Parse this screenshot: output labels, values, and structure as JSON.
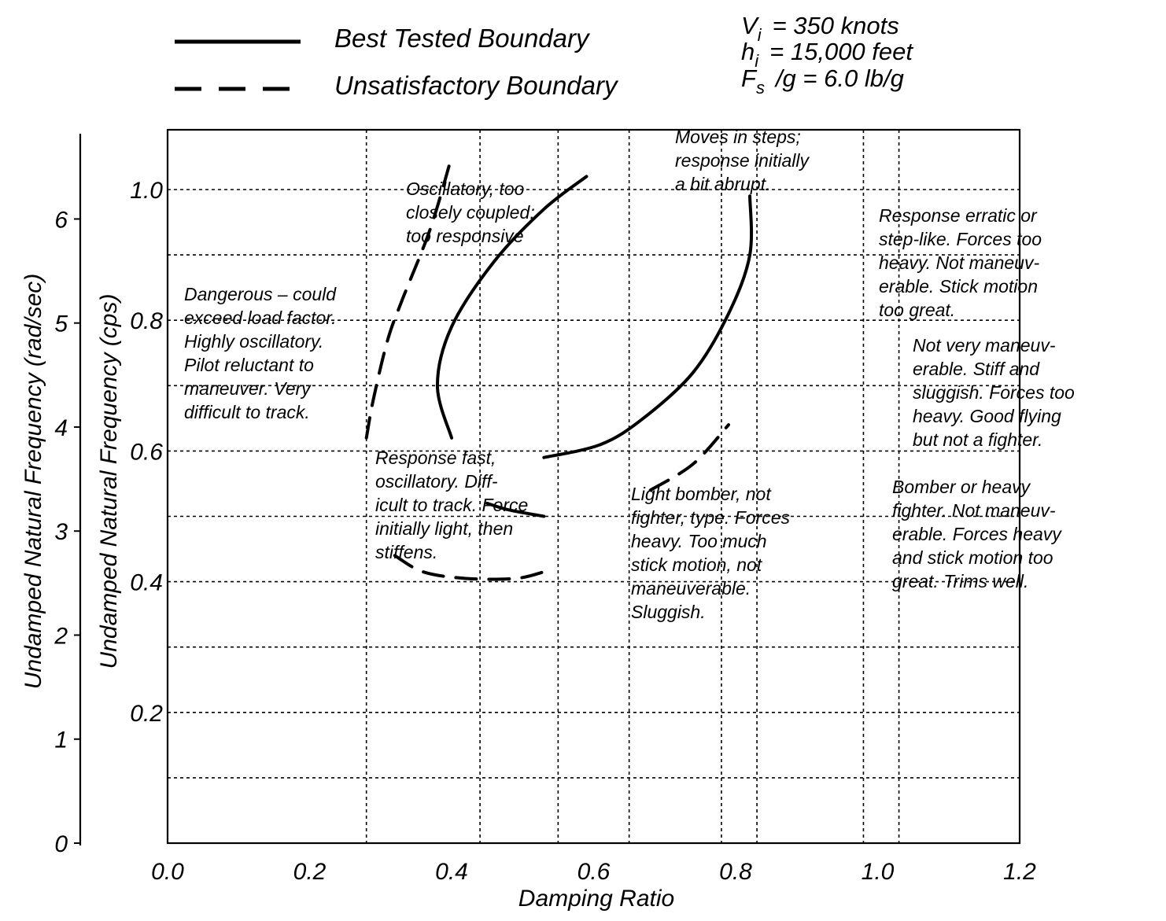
{
  "chart_data": {
    "type": "scatter",
    "title": "",
    "xlabel": "Damping Ratio",
    "ylabel": "Undamped Natural Frequency (cps)",
    "ylabel_secondary": "Undamped Natural Frequency (rad/sec)",
    "xlim": [
      0.0,
      1.2
    ],
    "ylim": [
      0.0,
      1.1
    ],
    "x_ticks": [
      "0.0",
      "0.2",
      "0.4",
      "0.6",
      "0.8",
      "1.0",
      "1.2"
    ],
    "y_ticks": [
      "0.2",
      "0.4",
      "0.6",
      "0.8",
      "1.0"
    ],
    "y2_ticks": [
      "0",
      "1",
      "2",
      "3",
      "4",
      "5",
      "6"
    ],
    "grid": true,
    "legend": [
      {
        "label": "Best Tested Boundary",
        "style": "solid"
      },
      {
        "label": "Unsatisfactory Boundary",
        "style": "dashed"
      }
    ],
    "conditions": [
      {
        "symbol": "V",
        "sub": "i",
        "text": "= 350 knots"
      },
      {
        "symbol": "h",
        "sub": "i",
        "text": "= 15,000 feet"
      },
      {
        "symbol": "F",
        "sub": "s",
        "text": "/g = 6.0 lb/g"
      }
    ],
    "series": [
      {
        "name": "Best Tested Boundary",
        "style": "solid",
        "points": [
          [
            0.4,
            0.62
          ],
          [
            0.38,
            0.7
          ],
          [
            0.4,
            0.79
          ],
          [
            0.46,
            0.89
          ],
          [
            0.53,
            0.97
          ],
          [
            0.59,
            1.02
          ]
        ]
      },
      {
        "name": "Best Tested Boundary",
        "style": "solid",
        "points": [
          [
            0.53,
            0.59
          ],
          [
            0.61,
            0.61
          ],
          [
            0.67,
            0.65
          ],
          [
            0.74,
            0.72
          ],
          [
            0.79,
            0.81
          ],
          [
            0.82,
            0.9
          ],
          [
            0.82,
            0.99
          ]
        ]
      },
      {
        "name": "Best Tested Boundary",
        "style": "solid",
        "points": [
          [
            0.45,
            0.52
          ],
          [
            0.48,
            0.51
          ],
          [
            0.53,
            0.5
          ]
        ]
      },
      {
        "name": "Unsatisfactory Boundary",
        "style": "dashed",
        "points": [
          [
            0.28,
            0.62
          ],
          [
            0.29,
            0.68
          ],
          [
            0.31,
            0.77
          ],
          [
            0.33,
            0.83
          ],
          [
            0.37,
            0.94
          ],
          [
            0.4,
            1.05
          ]
        ]
      },
      {
        "name": "Unsatisfactory Boundary",
        "style": "dashed",
        "points": [
          [
            0.32,
            0.44
          ],
          [
            0.36,
            0.415
          ],
          [
            0.42,
            0.405
          ],
          [
            0.49,
            0.405
          ],
          [
            0.53,
            0.415
          ]
        ]
      },
      {
        "name": "Unsatisfactory Boundary",
        "style": "dashed",
        "points": [
          [
            0.68,
            0.54
          ],
          [
            0.74,
            0.58
          ],
          [
            0.79,
            0.64
          ]
        ]
      }
    ],
    "annotations": [
      {
        "lines": [
          "Moves in steps;",
          "response initially",
          "a bit abrupt."
        ]
      },
      {
        "lines": [
          "Oscillatory, too",
          "closely coupled;",
          "too responsive"
        ]
      },
      {
        "lines": [
          "Response erratic or",
          "step-like.  Forces too",
          "heavy.  Not maneuv-",
          "erable.  Stick motion",
          "too great."
        ]
      },
      {
        "lines": [
          "Dangerous – could",
          "exceed load factor.",
          "Highly oscillatory.",
          "Pilot reluctant to",
          "maneuver.  Very",
          "difficult to track."
        ]
      },
      {
        "lines": [
          "Not very maneuv-",
          "erable.  Stiff and",
          "sluggish.  Forces too",
          "heavy.  Good flying",
          "but not a fighter."
        ]
      },
      {
        "lines": [
          "Response fast,",
          "oscillatory.  Diff-",
          "icult to track. Force",
          "initially light, then",
          "stiffens."
        ]
      },
      {
        "lines": [
          "Light bomber, not",
          "fighter, type.  Forces",
          "heavy.  Too much",
          "stick motion, not",
          "maneuverable.",
          "Sluggish."
        ]
      },
      {
        "lines": [
          "Bomber or heavy",
          "fighter.  Not maneuv-",
          "erable.  Forces heavy",
          "and stick motion too",
          "great.  Trims well."
        ]
      }
    ]
  }
}
